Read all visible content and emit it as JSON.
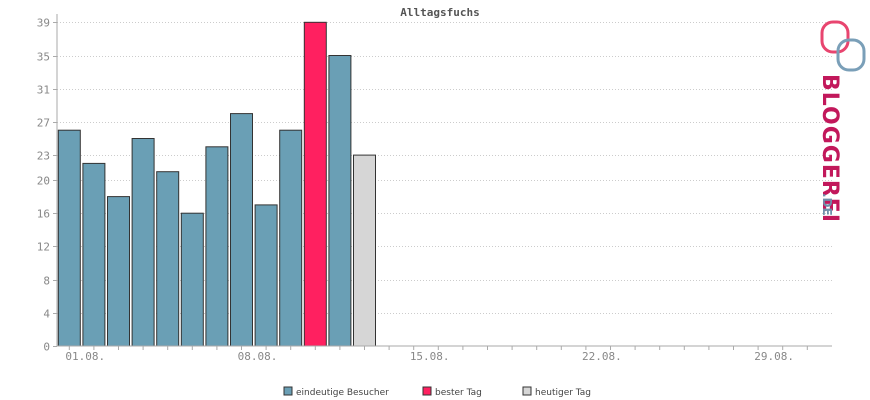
{
  "chart_data": {
    "type": "bar",
    "title": "Alltagsfuchs",
    "xlabel": "",
    "ylabel": "",
    "ylim": [
      0,
      40
    ],
    "yticks": [
      0,
      4,
      8,
      12,
      16,
      20,
      23,
      27,
      31,
      35,
      39
    ],
    "grid": true,
    "days_in_month": 31,
    "xtick_labels": [
      {
        "day": 1,
        "label": "01.08."
      },
      {
        "day": 8,
        "label": "08.08."
      },
      {
        "day": 15,
        "label": "15.08."
      },
      {
        "day": 22,
        "label": "22.08."
      },
      {
        "day": 29,
        "label": "29.08."
      }
    ],
    "categories": [
      "01.08.",
      "02.08.",
      "03.08.",
      "04.08.",
      "05.08.",
      "06.08.",
      "07.08.",
      "08.08.",
      "09.08.",
      "10.08.",
      "11.08.",
      "12.08.",
      "13.08."
    ],
    "series": [
      {
        "name": "eindeutige Besucher",
        "color": "#6a9fb5",
        "values": [
          26,
          22,
          18,
          25,
          21,
          16,
          24,
          28,
          17,
          26,
          null,
          35,
          null
        ]
      },
      {
        "name": "bester Tag",
        "color": "#ff2060",
        "values": [
          null,
          null,
          null,
          null,
          null,
          null,
          null,
          null,
          null,
          null,
          39,
          null,
          null
        ]
      },
      {
        "name": "heutiger Tag",
        "color": "#d6d6d6",
        "values": [
          null,
          null,
          null,
          null,
          null,
          null,
          null,
          null,
          null,
          null,
          null,
          null,
          23
        ]
      }
    ],
    "legend_position": "bottom-center"
  },
  "logo": {
    "text_main": "BLOGGEREI",
    "text_suffix": ".DE"
  }
}
